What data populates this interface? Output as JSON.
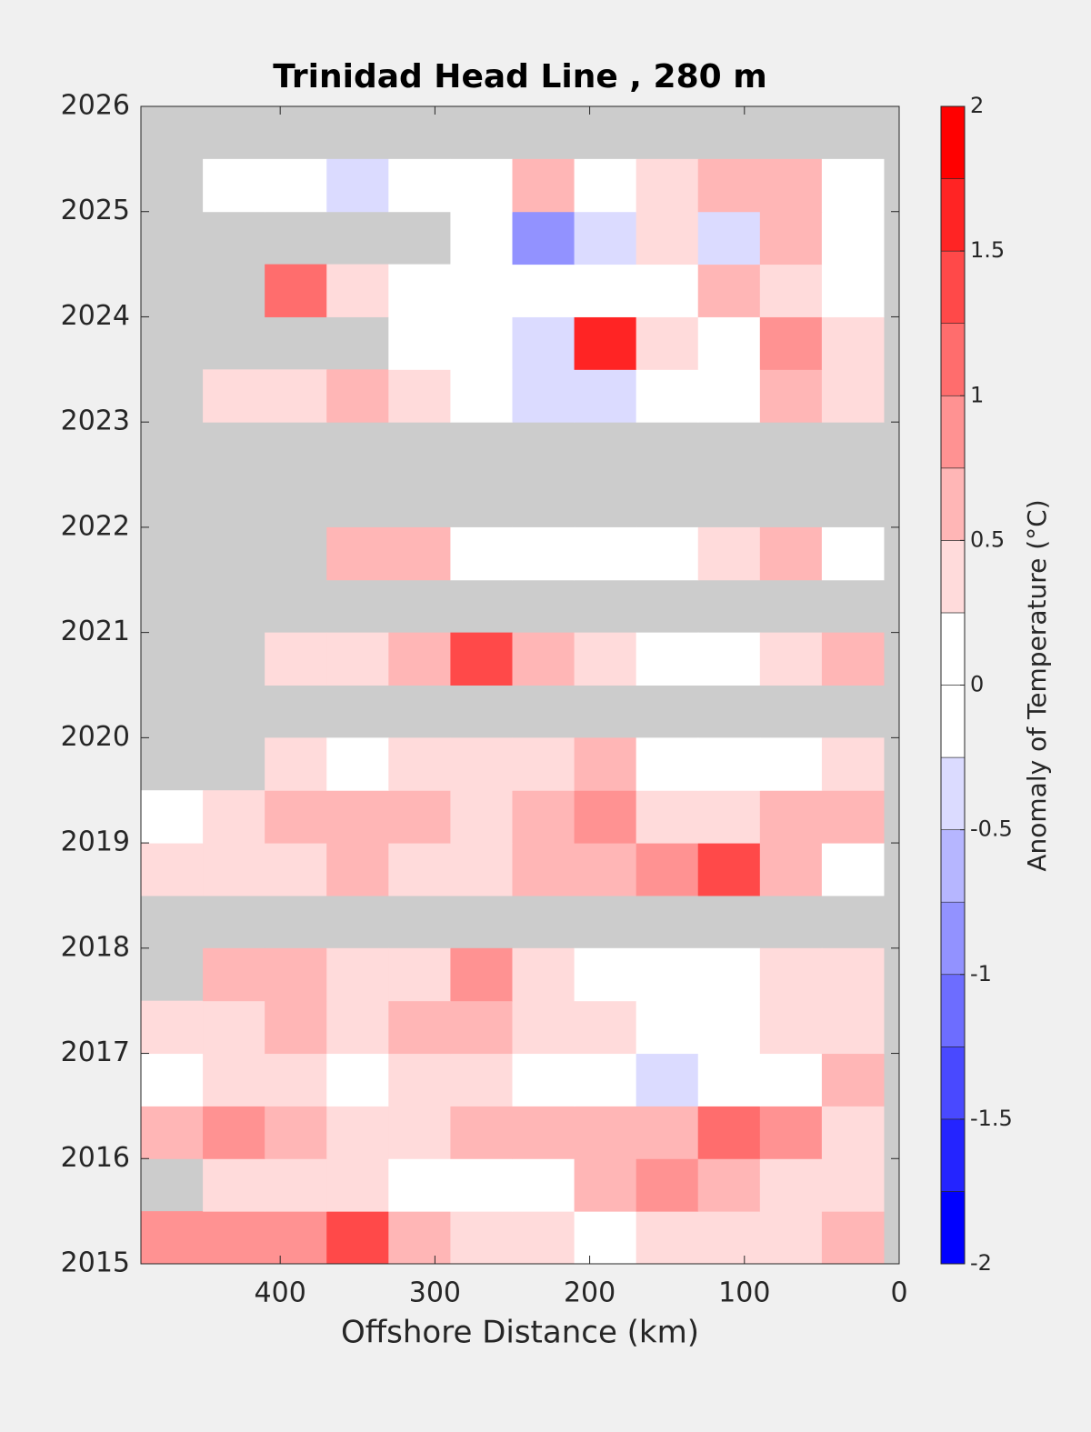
{
  "chart_data": {
    "type": "contour",
    "title": "Trinidad Head Line , 280 m",
    "x_label": "Offshore Distance (km)",
    "colorbar_label": "Anomaly of Temperature (°C)",
    "xlim": [
      490,
      0
    ],
    "xticks": [
      400,
      300,
      200,
      100,
      0
    ],
    "ylim": [
      2015,
      2026
    ],
    "yticks": [
      2015,
      2016,
      2017,
      2018,
      2019,
      2020,
      2021,
      2022,
      2023,
      2024,
      2025,
      2026
    ],
    "missing_color": "#cccccc",
    "levels": [
      -2,
      -1.75,
      -1.5,
      -1.25,
      -1,
      -0.75,
      -0.5,
      -0.25,
      0,
      0.25,
      0.5,
      0.75,
      1,
      1.25,
      1.5,
      1.75,
      2
    ],
    "colors": [
      "#0000ff",
      "#2424ff",
      "#4949ff",
      "#6d6dff",
      "#9292ff",
      "#b6b6ff",
      "#dbdbff",
      "#ffffff",
      "#ffffff",
      "#ffdbdb",
      "#ffb6b6",
      "#ff9292",
      "#ff6d6d",
      "#ff4949",
      "#ff2424",
      "#ff0000"
    ],
    "cticks": [
      -2,
      -1.5,
      -1,
      -0.5,
      0,
      0.5,
      1,
      1.5,
      2
    ],
    "x": [
      470,
      430,
      390,
      350,
      310,
      270,
      230,
      190,
      150,
      110,
      70,
      30
    ],
    "y": [
      2015.25,
      2015.75,
      2016.25,
      2016.75,
      2017.25,
      2017.75,
      2018.25,
      2018.75,
      2019.25,
      2019.75,
      2020.25,
      2020.75,
      2021.25,
      2021.75,
      2022.25,
      2022.75,
      2023.25,
      2023.75,
      2024.25,
      2024.75,
      2025.25,
      2025.75
    ],
    "z": [
      [
        0.8,
        0.8,
        0.9,
        1.3,
        0.6,
        0.3,
        0.4,
        0.2,
        0.3,
        0.3,
        0.4,
        0.5
      ],
      [
        null,
        0.3,
        0.4,
        0.3,
        0.2,
        0.1,
        0,
        0.5,
        0.8,
        0.7,
        0.3,
        0.3
      ],
      [
        0.5,
        0.9,
        0.5,
        0.3,
        0.4,
        0.5,
        0.7,
        0.5,
        0.5,
        1.0,
        0.8,
        0.3
      ],
      [
        0.2,
        0.3,
        0.4,
        0.2,
        0.3,
        0.4,
        0,
        -0.1,
        -0.3,
        -0.2,
        0.1,
        0.7
      ],
      [
        0.4,
        0.3,
        0.5,
        0.4,
        0.5,
        0.6,
        0.4,
        0.3,
        0.2,
        0.1,
        0.4,
        0.3
      ],
      [
        null,
        0.6,
        0.5,
        0.4,
        0.3,
        0.8,
        0.3,
        0.2,
        0.2,
        0.1,
        0.3,
        0.4
      ],
      [
        null,
        null,
        null,
        null,
        null,
        null,
        null,
        null,
        null,
        null,
        null,
        null
      ],
      [
        0.4,
        0.3,
        0.3,
        0.5,
        0.3,
        0.4,
        0.6,
        0.7,
        0.9,
        1.3,
        0.7,
        0.2
      ],
      [
        0.2,
        0.3,
        0.5,
        0.6,
        0.5,
        0.4,
        0.5,
        0.8,
        0.4,
        0.4,
        0.6,
        0.7
      ],
      [
        null,
        null,
        0.3,
        0.2,
        0.3,
        0.4,
        0.3,
        0.5,
        -0.2,
        0,
        0.2,
        0.3
      ],
      [
        null,
        null,
        null,
        null,
        null,
        null,
        null,
        null,
        null,
        null,
        null,
        null
      ],
      [
        null,
        null,
        0.4,
        0.3,
        0.6,
        1.4,
        0.6,
        0.3,
        0.2,
        0.2,
        0.3,
        0.6
      ],
      [
        null,
        null,
        null,
        null,
        null,
        null,
        null,
        null,
        null,
        null,
        null,
        null
      ],
      [
        null,
        null,
        null,
        0.5,
        0.6,
        0.2,
        -0.2,
        0.1,
        0.2,
        0.3,
        0.6,
        0.2
      ],
      [
        null,
        null,
        null,
        null,
        null,
        null,
        null,
        null,
        null,
        null,
        null,
        null
      ],
      [
        null,
        null,
        null,
        null,
        null,
        null,
        null,
        null,
        null,
        null,
        null,
        null
      ],
      [
        null,
        0.3,
        0.4,
        0.6,
        0.3,
        0.2,
        -0.3,
        -0.4,
        -0.2,
        0.2,
        0.5,
        0.3
      ],
      [
        null,
        null,
        null,
        null,
        0.2,
        0.1,
        -0.3,
        1.5,
        0.3,
        -0.2,
        0.8,
        0.3
      ],
      [
        null,
        null,
        1.2,
        0.3,
        0.2,
        0.1,
        -0.1,
        0,
        0.2,
        0.5,
        0.3,
        -0.2
      ],
      [
        null,
        null,
        null,
        null,
        null,
        0.2,
        -1.0,
        -0.3,
        0.4,
        -0.3,
        0.6,
        0.2
      ],
      [
        null,
        0.2,
        0.1,
        -0.3,
        -0.2,
        0.1,
        0.5,
        0.1,
        0.3,
        0.5,
        0.5,
        0.2
      ],
      [
        null,
        null,
        null,
        null,
        null,
        null,
        null,
        null,
        null,
        null,
        null,
        null
      ]
    ]
  }
}
